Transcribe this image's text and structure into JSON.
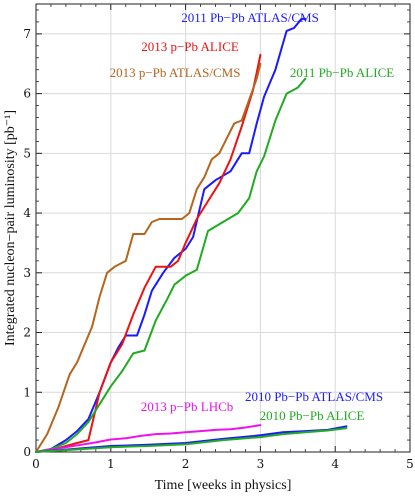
{
  "chart_data": {
    "type": "line",
    "title": "",
    "xlabel": "Time [weeks in physics]",
    "ylabel": "Integrated nucleon−pair luminosity [pb⁻¹]",
    "xlim": [
      0,
      5
    ],
    "ylim": [
      0,
      7.5
    ],
    "xticks": [
      "0",
      "1",
      "2",
      "3",
      "4",
      "5"
    ],
    "yticks": [
      "0",
      "1",
      "2",
      "3",
      "4",
      "5",
      "6",
      "7"
    ],
    "grid": true,
    "series": [
      {
        "name": "2011 Pb−Pb ATLAS/CMS",
        "color": "#1a1aff",
        "x": [
          0,
          0.2,
          0.4,
          0.55,
          0.7,
          0.85,
          1.0,
          1.1,
          1.2,
          1.35,
          1.45,
          1.55,
          1.7,
          1.85,
          2.0,
          2.1,
          2.25,
          2.4,
          2.6,
          2.75,
          2.85,
          2.95,
          3.05,
          3.2,
          3.35,
          3.45,
          3.55,
          3.6
        ],
        "y": [
          0,
          0.05,
          0.2,
          0.35,
          0.55,
          1.0,
          1.5,
          1.75,
          1.95,
          1.95,
          2.3,
          2.7,
          3.0,
          3.25,
          3.4,
          3.6,
          4.4,
          4.55,
          4.7,
          5.0,
          5.0,
          5.5,
          5.95,
          6.4,
          7.05,
          7.1,
          7.25,
          7.25
        ]
      },
      {
        "name": "2013 p−Pb ALICE",
        "color": "#ee1111",
        "x": [
          0,
          0.2,
          0.4,
          0.55,
          0.7,
          0.85,
          1.0,
          1.15,
          1.3,
          1.45,
          1.6,
          1.8,
          1.9,
          2.0,
          2.15,
          2.3,
          2.45,
          2.6,
          2.75,
          2.9,
          2.95,
          3.0
        ],
        "y": [
          0,
          0.03,
          0.1,
          0.15,
          0.2,
          1.0,
          1.5,
          1.8,
          2.3,
          2.75,
          3.1,
          3.1,
          3.2,
          3.5,
          3.9,
          4.2,
          4.5,
          4.9,
          5.45,
          6.05,
          6.35,
          6.65
        ]
      },
      {
        "name": "2013 p−Pb ATLAS/CMS",
        "color": "#b5651d",
        "x": [
          0,
          0.15,
          0.3,
          0.45,
          0.55,
          0.65,
          0.75,
          0.85,
          0.95,
          1.05,
          1.2,
          1.3,
          1.45,
          1.55,
          1.65,
          1.8,
          1.95,
          2.05,
          2.15,
          2.25,
          2.35,
          2.45,
          2.55,
          2.65,
          2.75,
          2.85,
          2.95,
          3.0
        ],
        "y": [
          0,
          0.3,
          0.75,
          1.3,
          1.5,
          1.8,
          2.1,
          2.6,
          3.0,
          3.1,
          3.2,
          3.65,
          3.65,
          3.85,
          3.9,
          3.9,
          3.9,
          4.0,
          4.4,
          4.6,
          4.9,
          5.0,
          5.25,
          5.5,
          5.55,
          5.9,
          6.25,
          6.5
        ]
      },
      {
        "name": "2011 Pb−Pb ALICE",
        "color": "#22aa22",
        "x": [
          0,
          0.2,
          0.4,
          0.55,
          0.7,
          0.85,
          1.0,
          1.15,
          1.3,
          1.45,
          1.6,
          1.75,
          1.85,
          2.0,
          2.15,
          2.3,
          2.5,
          2.7,
          2.85,
          2.95,
          3.05,
          3.2,
          3.35,
          3.5,
          3.6
        ],
        "y": [
          0,
          0.05,
          0.15,
          0.3,
          0.5,
          0.8,
          1.1,
          1.35,
          1.65,
          1.7,
          2.2,
          2.55,
          2.8,
          2.95,
          3.05,
          3.7,
          3.85,
          4.0,
          4.25,
          4.7,
          4.95,
          5.55,
          6.0,
          6.1,
          6.25
        ]
      },
      {
        "name": "2013 p−Pb LHCb",
        "color": "#ee11ee",
        "x": [
          0,
          0.2,
          0.4,
          0.6,
          0.8,
          1.0,
          1.2,
          1.4,
          1.6,
          1.8,
          2.0,
          2.2,
          2.4,
          2.6,
          2.8,
          3.0
        ],
        "y": [
          0,
          0.04,
          0.08,
          0.12,
          0.16,
          0.21,
          0.23,
          0.27,
          0.3,
          0.31,
          0.33,
          0.35,
          0.37,
          0.38,
          0.41,
          0.45
        ]
      },
      {
        "name": "2010 Pb−Pb ATLAS/CMS",
        "color": "#1a1aff",
        "x": [
          0,
          0.5,
          1.0,
          1.5,
          2.0,
          2.5,
          3.0,
          3.3,
          3.6,
          3.9,
          4.15
        ],
        "y": [
          0,
          0.05,
          0.1,
          0.12,
          0.15,
          0.22,
          0.28,
          0.33,
          0.35,
          0.37,
          0.43
        ]
      },
      {
        "name": "2010 Pb−Pb ALICE",
        "color": "#22aa22",
        "x": [
          0,
          0.5,
          1.0,
          1.5,
          2.0,
          2.5,
          3.0,
          3.3,
          3.6,
          3.9,
          4.15
        ],
        "y": [
          0,
          0.04,
          0.08,
          0.1,
          0.13,
          0.2,
          0.25,
          0.3,
          0.33,
          0.36,
          0.4
        ]
      }
    ]
  }
}
